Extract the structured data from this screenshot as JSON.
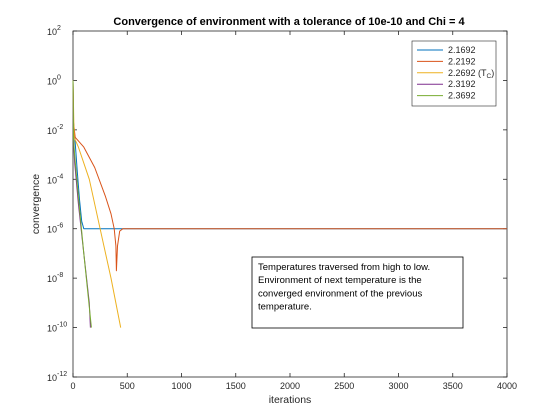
{
  "chart_data": {
    "type": "line",
    "title": "Convergence of environment with a tolerance of 10e-10 and Chi = 4",
    "xlabel": "iterations",
    "ylabel": "convergence",
    "xlim": [
      0,
      4000
    ],
    "ylim": [
      1e-12,
      100
    ],
    "yscale": "log",
    "grid": false,
    "legend_position": "top-right",
    "x_ticks": [
      "0",
      "500",
      "1000",
      "1500",
      "2000",
      "2500",
      "3000",
      "3500",
      "4000"
    ],
    "y_ticks": [
      {
        "base": "10",
        "exp": "2"
      },
      {
        "base": "10",
        "exp": "0"
      },
      {
        "base": "10",
        "exp": "-2"
      },
      {
        "base": "10",
        "exp": "-4"
      },
      {
        "base": "10",
        "exp": "-6"
      },
      {
        "base": "10",
        "exp": "-8"
      },
      {
        "base": "10",
        "exp": "-10"
      },
      {
        "base": "10",
        "exp": "-12"
      }
    ],
    "series": [
      {
        "name": "2.1692",
        "color": "#0072BD",
        "x": [
          0,
          5,
          20,
          40,
          60,
          80,
          100,
          4000
        ],
        "y": [
          1.0,
          0.02,
          0.003,
          0.0002,
          1.5e-05,
          2e-06,
          1e-06,
          1e-06
        ]
      },
      {
        "name": "2.2192",
        "color": "#D95319",
        "x": [
          0,
          5,
          20,
          100,
          200,
          300,
          350,
          380,
          395,
          400,
          410,
          430,
          460,
          500,
          4000
        ],
        "y": [
          1.0,
          0.02,
          0.005,
          0.002,
          0.0003,
          2e-05,
          4e-06,
          1e-06,
          2e-07,
          2e-08,
          2e-07,
          8e-07,
          1e-06,
          1e-06,
          1e-06
        ]
      },
      {
        "name": "2.2692",
        "name_sub": "C",
        "color": "#EDB120",
        "x": [
          0,
          10,
          50,
          150,
          250,
          350,
          440
        ],
        "y": [
          1.0,
          0.005,
          0.002,
          0.0001,
          1e-06,
          1e-08,
          1e-10
        ]
      },
      {
        "name": "2.3192",
        "color": "#7E2F8E",
        "x": [
          0,
          5,
          15,
          50,
          100,
          150,
          160
        ],
        "y": [
          1.0,
          0.005,
          0.0005,
          1e-05,
          1e-07,
          1e-09,
          1e-10
        ]
      },
      {
        "name": "2.3692",
        "color": "#77AC30",
        "x": [
          0,
          5,
          15,
          50,
          100,
          170
        ],
        "y": [
          1.0,
          0.005,
          0.001,
          2e-05,
          1e-07,
          1e-10
        ]
      }
    ],
    "annotation": [
      "Temperatures traversed from high to low.",
      "Environment of next temperature is the",
      "converged environment of the previous",
      "temperature."
    ]
  }
}
